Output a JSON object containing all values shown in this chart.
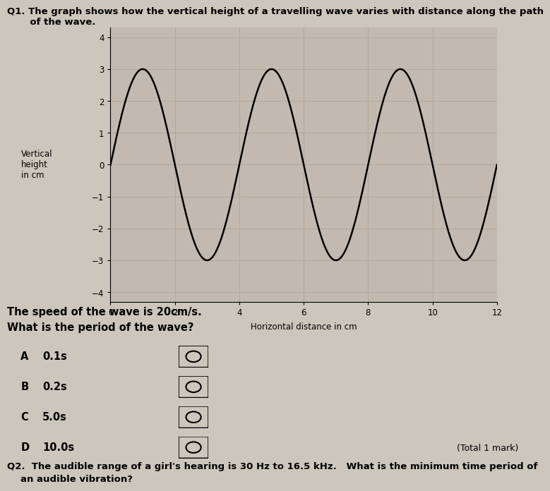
{
  "q1_text_line1": "Q1. The graph shows how the vertical height of a travelling wave varies with distance along the path",
  "q1_text_line2": "       of the wave.",
  "speed_text": "The speed of the wave is 20cm/s.",
  "period_question": "What is the period of the wave?",
  "option_letters": [
    "A",
    "B",
    "C",
    "D"
  ],
  "option_values": [
    "0.1s",
    "0.2s",
    "5.0s",
    "10.0s"
  ],
  "total_mark": "(Total 1 mark)",
  "q2_line1": "Q2.  The audible range of a girl's hearing is 30 Hz to 16.5 kHz.   What is the minimum time period of",
  "q2_line2": "an audible vibration?",
  "ylabel_lines": [
    "Vertical",
    "height",
    "in cm"
  ],
  "xlabel": "Horizontal distance in cm",
  "yticks": [
    -4,
    -3,
    -2,
    -1,
    0,
    1,
    2,
    3,
    4
  ],
  "xticks": [
    0,
    2,
    4,
    6,
    8,
    10,
    12
  ],
  "ylim": [
    -4.3,
    4.3
  ],
  "xlim": [
    0,
    12
  ],
  "amplitude": 3.0,
  "wavelength": 4.0,
  "wave_color": "#000000",
  "grid_color": "#b0a898",
  "bg_color": "#cdc6bc",
  "plot_bg_color": "#c2bab0",
  "axis_label_fontsize": 8.5,
  "tick_fontsize": 8.5,
  "text_fontsize": 9.5,
  "bold_fontsize": 10.5
}
